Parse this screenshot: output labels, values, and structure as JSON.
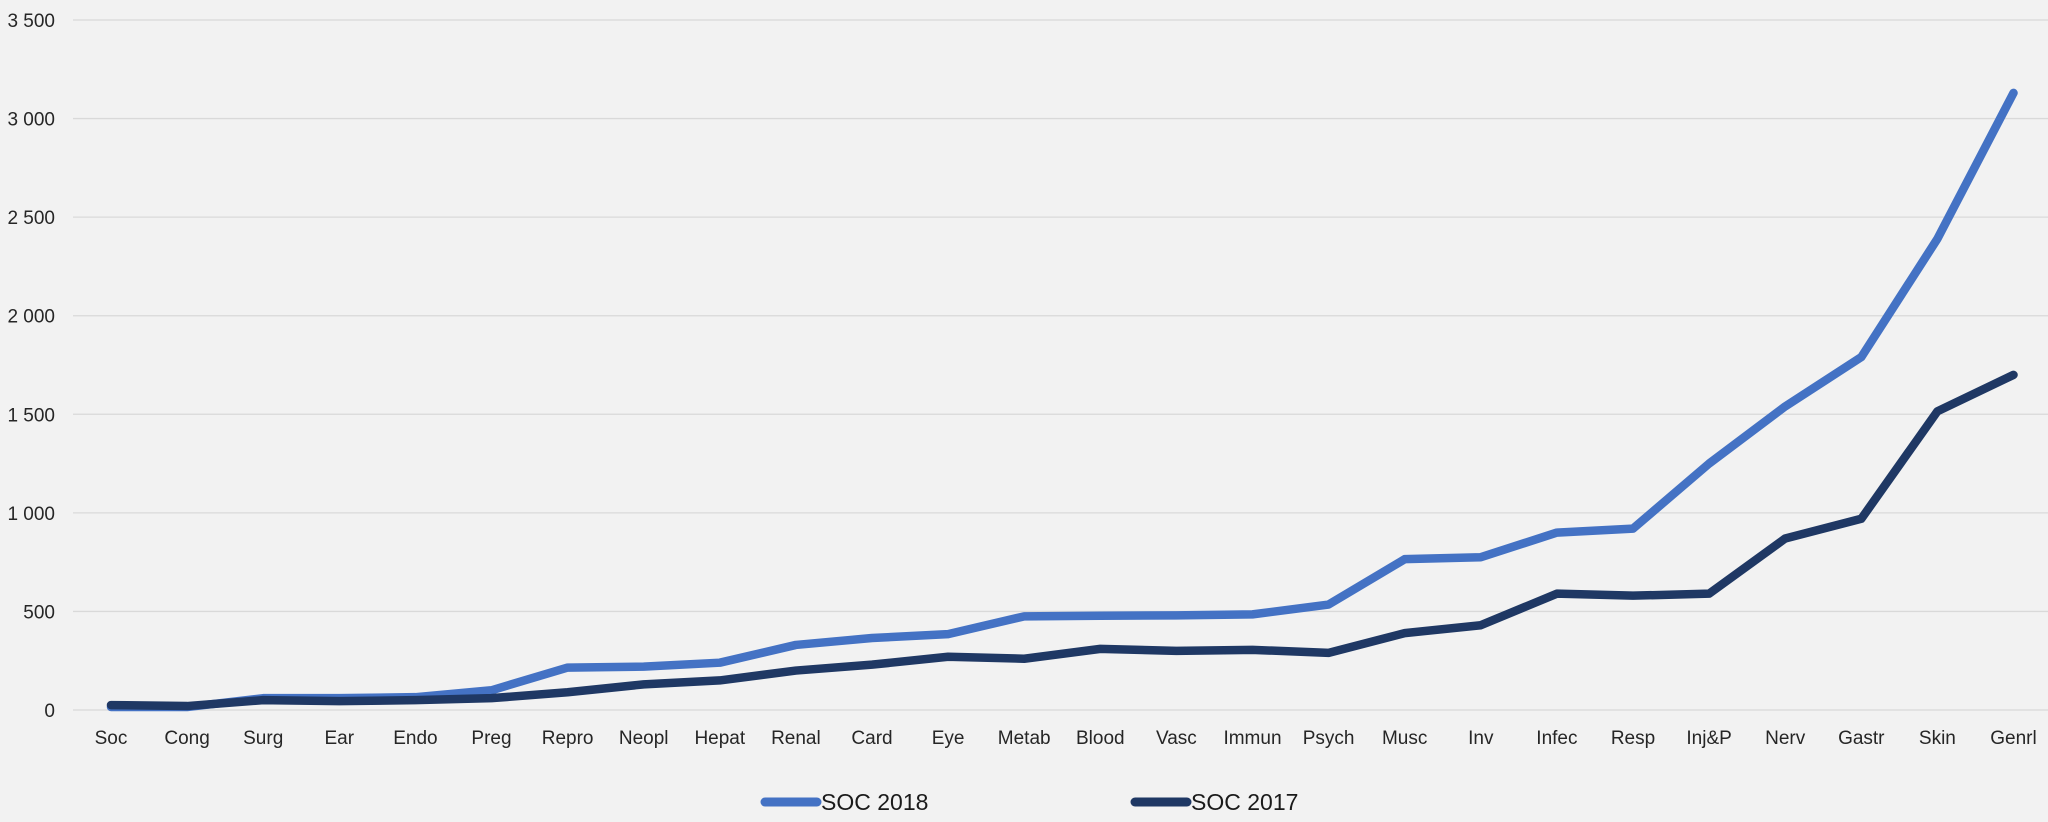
{
  "chart_data": {
    "type": "line",
    "title": "",
    "xlabel": "",
    "ylabel": "",
    "ylim": [
      0,
      3500
    ],
    "yticks": [
      0,
      500,
      1000,
      1500,
      2000,
      2500,
      3000,
      3500
    ],
    "ytick_labels": [
      "0",
      "500",
      "1 000",
      "1 500",
      "2 000",
      "2 500",
      "3 000",
      "3 500"
    ],
    "grid": "horizontal",
    "legend_position": "bottom",
    "categories": [
      "Soc",
      "Cong",
      "Surg",
      "Ear",
      "Endo",
      "Preg",
      "Repro",
      "Neopl",
      "Hepat",
      "Renal",
      "Card",
      "Eye",
      "Metab",
      "Blood",
      "Vasc",
      "Immun",
      "Psych",
      "Musc",
      "Inv",
      "Infec",
      "Resp",
      "Inj&P",
      "Nerv",
      "Gastr",
      "Skin",
      "Genrl"
    ],
    "series": [
      {
        "name": "SOC 2018",
        "color": "#4472c4",
        "values": [
          15,
          15,
          60,
          60,
          65,
          100,
          215,
          220,
          240,
          330,
          365,
          385,
          475,
          478,
          480,
          485,
          535,
          765,
          775,
          900,
          920,
          1250,
          1540,
          1790,
          2390,
          3130
        ]
      },
      {
        "name": "SOC 2017",
        "color": "#1f3864",
        "values": [
          25,
          20,
          50,
          45,
          50,
          60,
          90,
          130,
          150,
          200,
          230,
          270,
          260,
          310,
          300,
          305,
          290,
          390,
          430,
          590,
          580,
          590,
          870,
          970,
          1515,
          1700
        ]
      }
    ]
  }
}
